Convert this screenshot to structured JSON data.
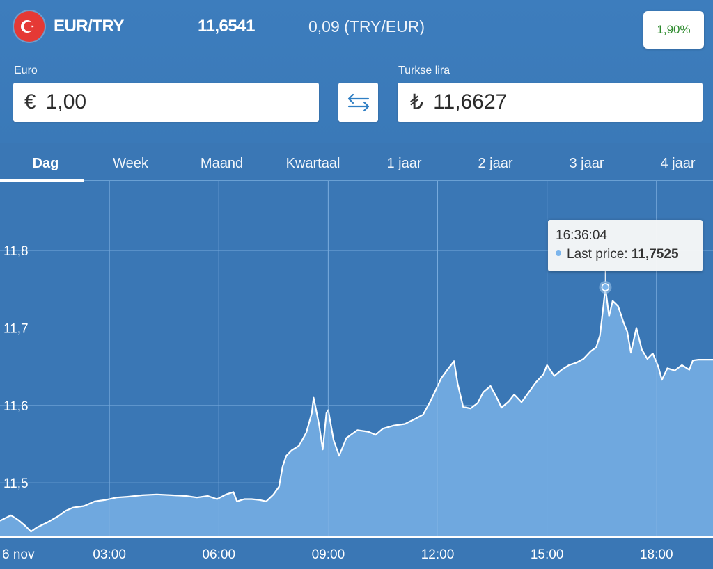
{
  "header": {
    "pair": "EUR/TRY",
    "rate": "11,6541",
    "inverse": "0,09 (TRY/EUR)",
    "change": "1,90%"
  },
  "converter": {
    "from_label": "Euro",
    "from_symbol": "€",
    "from_value": "1,00",
    "to_label": "Turkse lira",
    "to_symbol": "₺",
    "to_value": "11,6627",
    "swap_icon": "swap-arrows-icon"
  },
  "tabs": [
    {
      "label": "Dag",
      "active": true
    },
    {
      "label": "Week",
      "active": false
    },
    {
      "label": "Maand",
      "active": false
    },
    {
      "label": "Kwartaal",
      "active": false
    },
    {
      "label": "1 jaar",
      "active": false
    },
    {
      "label": "2 jaar",
      "active": false
    },
    {
      "label": "3 jaar",
      "active": false
    },
    {
      "label": "4 jaar",
      "active": false
    }
  ],
  "colors": {
    "background": "#3a77b5",
    "area_fill": "#6fa8df",
    "line": "#ffffff",
    "grid": "#6a9fd4",
    "change_positive": "#2e8b2e"
  },
  "tooltip": {
    "time": "16:36:04",
    "label": "Last price:",
    "value": "11,7525"
  },
  "chart_data": {
    "type": "area",
    "ylim": [
      11.43,
      11.89
    ],
    "yticks": [
      {
        "value": 11.5,
        "label": "11,5"
      },
      {
        "value": 11.6,
        "label": "11,6"
      },
      {
        "value": 11.7,
        "label": "11,7"
      },
      {
        "value": 11.8,
        "label": "11,8"
      }
    ],
    "xlim": [
      0,
      19.15
    ],
    "xticks": [
      {
        "value": 0,
        "label": "6 nov"
      },
      {
        "value": 3,
        "label": "03:00"
      },
      {
        "value": 6,
        "label": "06:00"
      },
      {
        "value": 9,
        "label": "09:00"
      },
      {
        "value": 12,
        "label": "12:00"
      },
      {
        "value": 15,
        "label": "15:00"
      },
      {
        "value": 18,
        "label": "18:00"
      }
    ],
    "highlight": {
      "x": 16.6,
      "y": 11.7525
    },
    "series": [
      {
        "points": [
          [
            0.0,
            11.451
          ],
          [
            0.3,
            11.458
          ],
          [
            0.5,
            11.452
          ],
          [
            0.7,
            11.444
          ],
          [
            0.85,
            11.437
          ],
          [
            1.0,
            11.442
          ],
          [
            1.3,
            11.449
          ],
          [
            1.6,
            11.457
          ],
          [
            1.8,
            11.464
          ],
          [
            2.0,
            11.468
          ],
          [
            2.3,
            11.47
          ],
          [
            2.6,
            11.476
          ],
          [
            2.9,
            11.478
          ],
          [
            3.2,
            11.481
          ],
          [
            3.5,
            11.482
          ],
          [
            3.9,
            11.484
          ],
          [
            4.3,
            11.485
          ],
          [
            4.7,
            11.484
          ],
          [
            5.1,
            11.483
          ],
          [
            5.4,
            11.481
          ],
          [
            5.7,
            11.483
          ],
          [
            5.95,
            11.479
          ],
          [
            6.2,
            11.485
          ],
          [
            6.4,
            11.488
          ],
          [
            6.5,
            11.476
          ],
          [
            6.7,
            11.479
          ],
          [
            6.9,
            11.479
          ],
          [
            7.1,
            11.478
          ],
          [
            7.3,
            11.476
          ],
          [
            7.5,
            11.485
          ],
          [
            7.65,
            11.495
          ],
          [
            7.75,
            11.521
          ],
          [
            7.85,
            11.535
          ],
          [
            8.0,
            11.542
          ],
          [
            8.2,
            11.548
          ],
          [
            8.4,
            11.565
          ],
          [
            8.55,
            11.59
          ],
          [
            8.6,
            11.61
          ],
          [
            8.75,
            11.575
          ],
          [
            8.85,
            11.543
          ],
          [
            8.95,
            11.59
          ],
          [
            9.0,
            11.594
          ],
          [
            9.15,
            11.555
          ],
          [
            9.3,
            11.535
          ],
          [
            9.5,
            11.558
          ],
          [
            9.8,
            11.568
          ],
          [
            10.1,
            11.566
          ],
          [
            10.3,
            11.562
          ],
          [
            10.5,
            11.57
          ],
          [
            10.8,
            11.574
          ],
          [
            11.1,
            11.576
          ],
          [
            11.4,
            11.583
          ],
          [
            11.6,
            11.588
          ],
          [
            11.8,
            11.605
          ],
          [
            11.95,
            11.62
          ],
          [
            12.1,
            11.635
          ],
          [
            12.3,
            11.648
          ],
          [
            12.45,
            11.657
          ],
          [
            12.55,
            11.628
          ],
          [
            12.7,
            11.598
          ],
          [
            12.9,
            11.596
          ],
          [
            13.1,
            11.603
          ],
          [
            13.25,
            11.617
          ],
          [
            13.45,
            11.625
          ],
          [
            13.6,
            11.612
          ],
          [
            13.75,
            11.597
          ],
          [
            13.95,
            11.605
          ],
          [
            14.1,
            11.614
          ],
          [
            14.3,
            11.604
          ],
          [
            14.5,
            11.617
          ],
          [
            14.7,
            11.63
          ],
          [
            14.9,
            11.64
          ],
          [
            15.0,
            11.652
          ],
          [
            15.2,
            11.638
          ],
          [
            15.4,
            11.646
          ],
          [
            15.6,
            11.652
          ],
          [
            15.8,
            11.655
          ],
          [
            16.0,
            11.66
          ],
          [
            16.2,
            11.67
          ],
          [
            16.35,
            11.675
          ],
          [
            16.45,
            11.69
          ],
          [
            16.55,
            11.73
          ],
          [
            16.6,
            11.7525
          ],
          [
            16.7,
            11.715
          ],
          [
            16.8,
            11.735
          ],
          [
            16.95,
            11.728
          ],
          [
            17.1,
            11.707
          ],
          [
            17.2,
            11.695
          ],
          [
            17.3,
            11.668
          ],
          [
            17.45,
            11.7
          ],
          [
            17.6,
            11.672
          ],
          [
            17.75,
            11.66
          ],
          [
            17.9,
            11.667
          ],
          [
            18.05,
            11.65
          ],
          [
            18.15,
            11.633
          ],
          [
            18.3,
            11.648
          ],
          [
            18.5,
            11.645
          ],
          [
            18.7,
            11.652
          ],
          [
            18.9,
            11.646
          ],
          [
            19.0,
            11.658
          ],
          [
            19.15,
            11.659
          ]
        ]
      }
    ]
  }
}
